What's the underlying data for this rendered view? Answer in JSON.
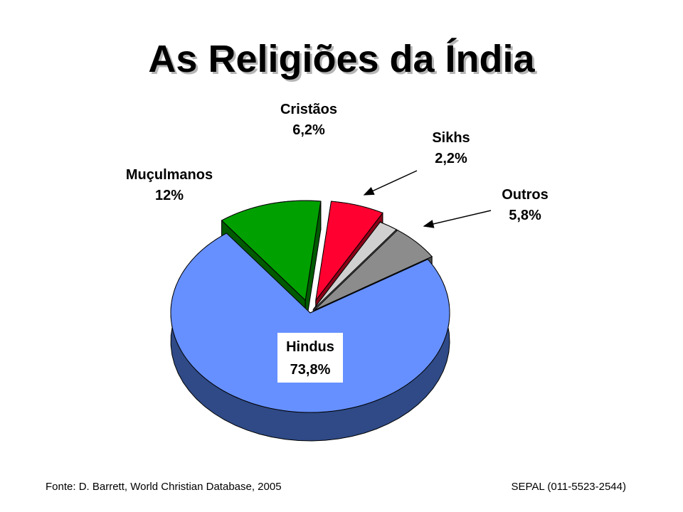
{
  "title": "As Religiões da Índia",
  "chart_data": {
    "type": "pie",
    "style": "3d-exploded",
    "slices": [
      {
        "name": "Hindus",
        "value": 73.8,
        "value_label": "73,8%",
        "color": "#6690ff",
        "side_color": "#2f4a86"
      },
      {
        "name": "Muçulmanos",
        "value": 12,
        "value_label": "12%",
        "color": "#00a000",
        "side_color": "#005a00"
      },
      {
        "name": "Cristãos",
        "value": 6.2,
        "value_label": "6,2%",
        "color": "#ff0030",
        "side_color": "#8a0018"
      },
      {
        "name": "Sikhs",
        "value": 2.2,
        "value_label": "2,2%",
        "color": "#d0d0d0",
        "side_color": "#7a7a7a"
      },
      {
        "name": "Outros",
        "value": 5.8,
        "value_label": "5,8%",
        "color": "#8c8c8c",
        "side_color": "#4a4a4a"
      }
    ]
  },
  "footer": {
    "source": "Fonte: D. Barrett, World Christian Database, 2005",
    "contact": "SEPAL (011-5523-2544)"
  }
}
